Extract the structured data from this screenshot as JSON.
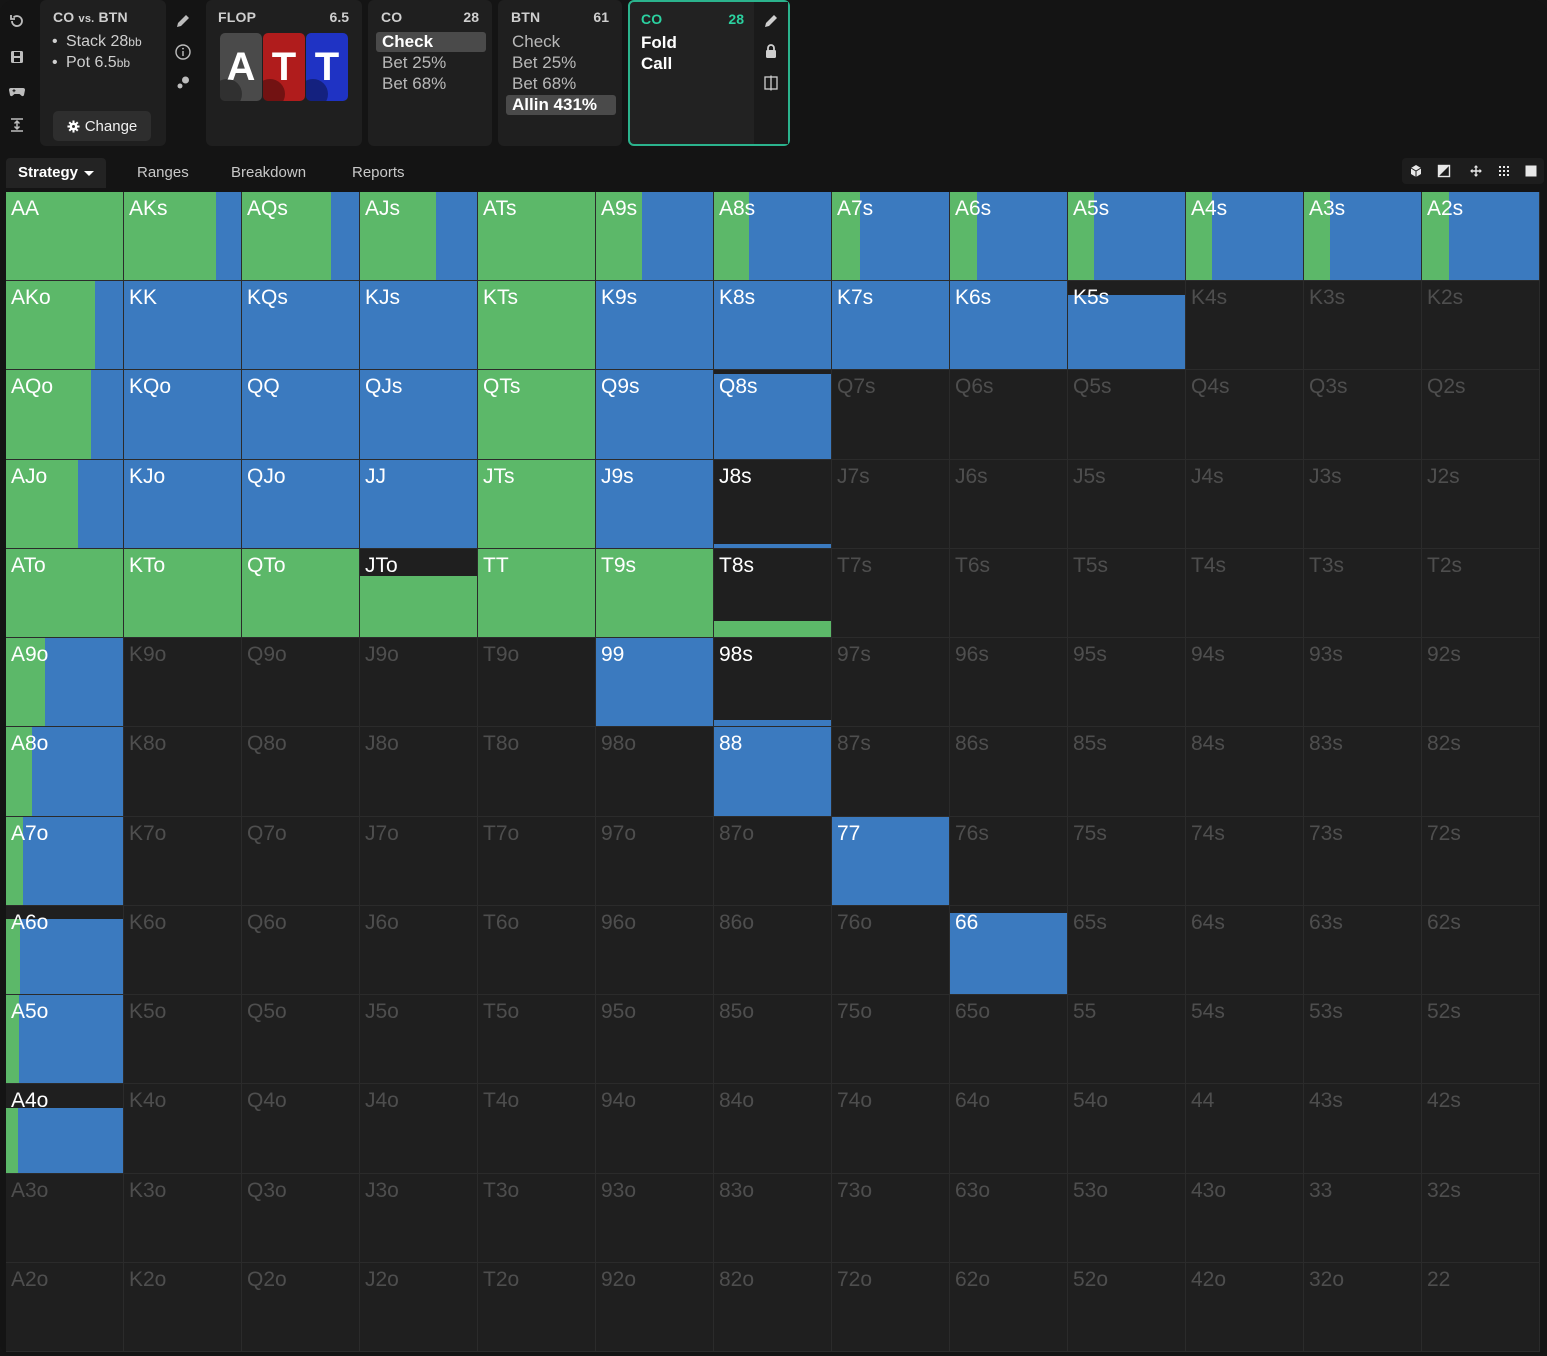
{
  "colors": {
    "check": "#3b7abf",
    "bet": "#5cb869",
    "empty": "#1f1f1f",
    "accent": "#2bd1a0"
  },
  "sidebar_tools": [
    "undo-icon",
    "save-icon",
    "gamepad-icon",
    "collapse-icon"
  ],
  "info": {
    "title_a": "CO",
    "title_vs": "vs.",
    "title_b": "BTN",
    "stack_label": "Stack 28",
    "stack_unit": "bb",
    "pot_label": "Pot 6.5",
    "pot_unit": "bb",
    "bullet": "•",
    "change_label": "Change",
    "change_icon": "gear-icon",
    "tools": [
      "pencil-icon",
      "info-icon",
      "chips-icon"
    ]
  },
  "flop": {
    "title": "FLOP",
    "pot": "6.5",
    "cards": [
      {
        "rank": "A",
        "color": "#4a4a4a"
      },
      {
        "rank": "T",
        "color": "#b01c1c"
      },
      {
        "rank": "T",
        "color": "#1f33c4"
      }
    ]
  },
  "co_node": {
    "title": "CO",
    "stack": "28",
    "options": [
      "Check",
      "Bet 25%",
      "Bet 68%"
    ],
    "selected": 0
  },
  "btn_node": {
    "title": "BTN",
    "stack": "61",
    "options": [
      "Check",
      "Bet 25%",
      "Bet 68%",
      "Allin 431%"
    ],
    "selected": 3
  },
  "active_node": {
    "title": "CO",
    "stack": "28",
    "options": [
      "Fold",
      "Call"
    ],
    "tools": [
      "pencil-icon",
      "lock-icon",
      "compare-icon"
    ]
  },
  "tabs": [
    {
      "label": "Strategy",
      "active": true
    },
    {
      "label": "Ranges",
      "active": false
    },
    {
      "label": "Breakdown",
      "active": false
    },
    {
      "label": "Reports",
      "active": false
    }
  ],
  "view_tools": [
    "cube-icon",
    "half-square-icon",
    "move-icon",
    "grid-icon",
    "full-square-icon"
  ],
  "grid": {
    "rows": [
      [
        "AA",
        "AKs",
        "AQs",
        "AJs",
        "ATs",
        "A9s",
        "A8s",
        "A7s",
        "A6s",
        "A5s",
        "A4s",
        "A3s",
        "A2s"
      ],
      [
        "AKo",
        "KK",
        "KQs",
        "KJs",
        "KTs",
        "K9s",
        "K8s",
        "K7s",
        "K6s",
        "K5s",
        "K4s",
        "K3s",
        "K2s"
      ],
      [
        "AQo",
        "KQo",
        "QQ",
        "QJs",
        "QTs",
        "Q9s",
        "Q8s",
        "Q7s",
        "Q6s",
        "Q5s",
        "Q4s",
        "Q3s",
        "Q2s"
      ],
      [
        "AJo",
        "KJo",
        "QJo",
        "JJ",
        "JTs",
        "J9s",
        "J8s",
        "J7s",
        "J6s",
        "J5s",
        "J4s",
        "J3s",
        "J2s"
      ],
      [
        "ATo",
        "KTo",
        "QTo",
        "JTo",
        "TT",
        "T9s",
        "T8s",
        "T7s",
        "T6s",
        "T5s",
        "T4s",
        "T3s",
        "T2s"
      ],
      [
        "A9o",
        "K9o",
        "Q9o",
        "J9o",
        "T9o",
        "99",
        "98s",
        "97s",
        "96s",
        "95s",
        "94s",
        "93s",
        "92s"
      ],
      [
        "A8o",
        "K8o",
        "Q8o",
        "J8o",
        "T8o",
        "98o",
        "88",
        "87s",
        "86s",
        "85s",
        "84s",
        "83s",
        "82s"
      ],
      [
        "A7o",
        "K7o",
        "Q7o",
        "J7o",
        "T7o",
        "97o",
        "87o",
        "77",
        "76s",
        "75s",
        "74s",
        "73s",
        "72s"
      ],
      [
        "A6o",
        "K6o",
        "Q6o",
        "J6o",
        "T6o",
        "96o",
        "86o",
        "76o",
        "66",
        "65s",
        "64s",
        "63s",
        "62s"
      ],
      [
        "A5o",
        "K5o",
        "Q5o",
        "J5o",
        "T5o",
        "95o",
        "85o",
        "75o",
        "65o",
        "55",
        "54s",
        "53s",
        "52s"
      ],
      [
        "A4o",
        "K4o",
        "Q4o",
        "J4o",
        "T4o",
        "94o",
        "84o",
        "74o",
        "64o",
        "54o",
        "44",
        "43s",
        "42s"
      ],
      [
        "A3o",
        "K3o",
        "Q3o",
        "J3o",
        "T3o",
        "93o",
        "83o",
        "73o",
        "63o",
        "53o",
        "43o",
        "33",
        "32s"
      ],
      [
        "A2o",
        "K2o",
        "Q2o",
        "J2o",
        "T2o",
        "92o",
        "82o",
        "72o",
        "62o",
        "52o",
        "42o",
        "32o",
        "22"
      ]
    ],
    "strategy": {
      "AA": {
        "freq": 1.0,
        "bet": 1.0
      },
      "AKs": {
        "freq": 1.0,
        "bet": 0.78
      },
      "AQs": {
        "freq": 1.0,
        "bet": 0.75
      },
      "AJs": {
        "freq": 1.0,
        "bet": 0.64
      },
      "ATs": {
        "freq": 1.0,
        "bet": 1.0
      },
      "A9s": {
        "freq": 1.0,
        "bet": 0.39
      },
      "A8s": {
        "freq": 1.0,
        "bet": 0.3
      },
      "A7s": {
        "freq": 1.0,
        "bet": 0.24
      },
      "A6s": {
        "freq": 1.0,
        "bet": 0.23
      },
      "A5s": {
        "freq": 1.0,
        "bet": 0.22
      },
      "A4s": {
        "freq": 1.0,
        "bet": 0.22
      },
      "A3s": {
        "freq": 1.0,
        "bet": 0.22
      },
      "A2s": {
        "freq": 1.0,
        "bet": 0.23
      },
      "AKo": {
        "freq": 1.0,
        "bet": 0.75
      },
      "KK": {
        "freq": 1.0,
        "bet": 0.0
      },
      "KQs": {
        "freq": 1.0,
        "bet": 0.0
      },
      "KJs": {
        "freq": 1.0,
        "bet": 0.0
      },
      "KTs": {
        "freq": 1.0,
        "bet": 1.0
      },
      "K9s": {
        "freq": 1.0,
        "bet": 0.0
      },
      "K8s": {
        "freq": 1.0,
        "bet": 0.0
      },
      "K7s": {
        "freq": 1.0,
        "bet": 0.0
      },
      "K6s": {
        "freq": 1.0,
        "bet": 0.0
      },
      "K5s": {
        "freq": 0.84,
        "bet": 0.0
      },
      "AQo": {
        "freq": 1.0,
        "bet": 0.72
      },
      "KQo": {
        "freq": 1.0,
        "bet": 0.0
      },
      "QQ": {
        "freq": 1.0,
        "bet": 0.0
      },
      "QJs": {
        "freq": 1.0,
        "bet": 0.0
      },
      "QTs": {
        "freq": 1.0,
        "bet": 1.0
      },
      "Q9s": {
        "freq": 1.0,
        "bet": 0.0
      },
      "Q8s": {
        "freq": 0.96,
        "bet": 0.0
      },
      "AJo": {
        "freq": 1.0,
        "bet": 0.61
      },
      "KJo": {
        "freq": 1.0,
        "bet": 0.0
      },
      "QJo": {
        "freq": 1.0,
        "bet": 0.0
      },
      "JJ": {
        "freq": 1.0,
        "bet": 0.0
      },
      "JTs": {
        "freq": 1.0,
        "bet": 1.0
      },
      "J9s": {
        "freq": 1.0,
        "bet": 0.0
      },
      "J8s": {
        "freq": 0.06,
        "bet": 0.0
      },
      "ATo": {
        "freq": 1.0,
        "bet": 1.0
      },
      "KTo": {
        "freq": 1.0,
        "bet": 1.0
      },
      "QTo": {
        "freq": 1.0,
        "bet": 1.0
      },
      "JTo": {
        "freq": 0.7,
        "bet": 1.0
      },
      "TT": {
        "freq": 1.0,
        "bet": 1.0
      },
      "T9s": {
        "freq": 1.0,
        "bet": 1.0
      },
      "T8s": {
        "freq": 0.19,
        "bet": 1.0
      },
      "A9o": {
        "freq": 1.0,
        "bet": 0.33
      },
      "99": {
        "freq": 1.0,
        "bet": 0.0
      },
      "98s": {
        "freq": 0.08,
        "bet": 0.0
      },
      "A8o": {
        "freq": 1.0,
        "bet": 0.22
      },
      "88": {
        "freq": 1.0,
        "bet": 0.0
      },
      "A7o": {
        "freq": 1.0,
        "bet": 0.14
      },
      "77": {
        "freq": 1.0,
        "bet": 0.0
      },
      "A6o": {
        "freq": 0.85,
        "bet": 0.12
      },
      "66": {
        "freq": 0.92,
        "bet": 0.0
      },
      "A5o": {
        "freq": 1.0,
        "bet": 0.11
      },
      "A4o": {
        "freq": 0.73,
        "bet": 0.1
      }
    }
  }
}
